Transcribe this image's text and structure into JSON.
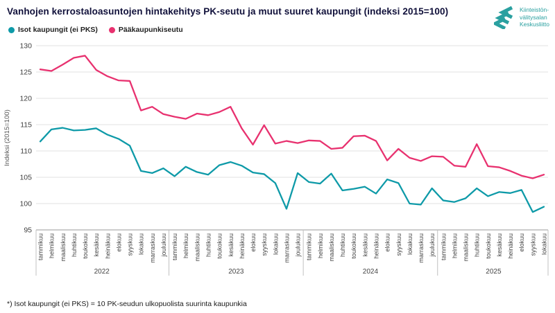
{
  "header": {
    "title": "Vanhojen kerrostaloasuntojen hintakehitys PK-seutu ja muut suuret kaupungit (indeksi 2015=100)"
  },
  "logo": {
    "lines": [
      "Kiinteistön-",
      "välitysalan",
      "Keskusliitto"
    ],
    "color": "#2aa0a0"
  },
  "legend": [
    {
      "label": "Isot kaupungit (ei PKS)",
      "color": "#0e9aa8"
    },
    {
      "label": "Pääkaupunkiseutu",
      "color": "#e8316f"
    }
  ],
  "footnote": "*) Isot kaupungit (ei PKS) = 10 PK-seudun ulkopuolista suurinta kaupunkia",
  "chart_data": {
    "type": "line",
    "title": "Vanhojen kerrostaloasuntojen hintakehitys PK-seutu ja muut suuret kaupungit (indeksi 2015=100)",
    "xlabel": "",
    "ylabel": "Indeksi (2015=100)",
    "ylim": [
      95,
      130
    ],
    "yticks": [
      95,
      100,
      105,
      110,
      115,
      120,
      125,
      130
    ],
    "grid": true,
    "legend_position": "top-left",
    "x_months": [
      "tammikuu",
      "helmikuu",
      "maaliskuu",
      "huhtikuu",
      "toukokuu",
      "kesäkuu",
      "heinäkuu",
      "elokuu",
      "syyskuu",
      "lokakuu",
      "marraskuu",
      "joulukuu",
      "tammikuu",
      "helmikuu",
      "maaliskuu",
      "huhtikuu",
      "toukokuu",
      "kesäkuu",
      "heinäkuu",
      "elokuu",
      "syyskuu",
      "lokakuu",
      "marraskuu",
      "joulukuu",
      "tammikuu",
      "helmikuu",
      "maaliskuu",
      "huhtikuu",
      "toukokuu",
      "kesäkuu",
      "heinäkuu",
      "elokuu",
      "syyskuu",
      "lokakuu",
      "marraskuu",
      "joulukuu",
      "tammikuu",
      "helmikuu",
      "maaliskuu",
      "huhtikuu",
      "toukokuu",
      "kesäkuu",
      "heinäkuu",
      "elokuu",
      "syyskuu",
      "lokakuu"
    ],
    "x_years": [
      {
        "label": "2022",
        "count": 12
      },
      {
        "label": "2023",
        "count": 12
      },
      {
        "label": "2024",
        "count": 12
      },
      {
        "label": "2025",
        "count": 10
      }
    ],
    "series": [
      {
        "name": "Isot kaupungit (ei PKS)",
        "color": "#0e9aa8",
        "values": [
          111.8,
          114.1,
          114.4,
          113.9,
          114.0,
          114.3,
          113.1,
          112.3,
          111.0,
          106.2,
          105.8,
          106.7,
          105.2,
          107.0,
          106.0,
          105.5,
          107.3,
          107.9,
          107.2,
          105.9,
          105.6,
          103.9,
          99.0,
          105.8,
          104.1,
          103.8,
          105.7,
          102.5,
          102.8,
          103.2,
          101.9,
          104.6,
          103.9,
          100.0,
          99.8,
          102.9,
          100.6,
          100.3,
          101.0,
          102.9,
          101.4,
          102.2,
          102.0,
          102.6,
          98.4,
          99.4
        ]
      },
      {
        "name": "Pääkaupunkiseutu",
        "color": "#e8316f",
        "values": [
          125.5,
          125.2,
          126.4,
          127.7,
          128.1,
          125.4,
          124.2,
          123.4,
          123.3,
          117.7,
          118.4,
          117.0,
          116.5,
          116.1,
          117.1,
          116.8,
          117.4,
          118.4,
          114.3,
          111.2,
          114.9,
          111.4,
          111.9,
          111.5,
          112.0,
          111.9,
          110.4,
          110.6,
          112.8,
          112.9,
          111.9,
          108.2,
          110.4,
          108.7,
          108.1,
          109.0,
          108.9,
          107.2,
          107.0,
          111.3,
          107.1,
          106.9,
          106.2,
          105.3,
          104.8,
          105.5
        ]
      }
    ]
  }
}
